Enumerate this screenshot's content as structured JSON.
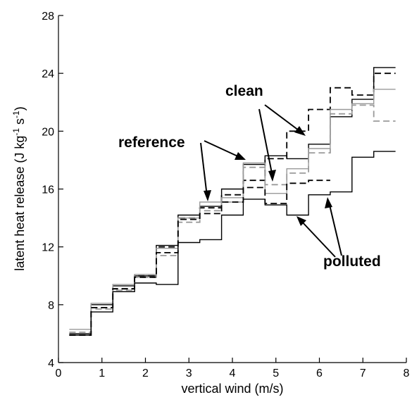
{
  "chart_data": {
    "type": "line",
    "xlabel": "vertical wind (m/s)",
    "ylabel_parts": [
      "latent heat release (J kg",
      "-1",
      " s",
      "-1",
      ")"
    ],
    "xlim": [
      0,
      8
    ],
    "ylim": [
      4,
      28
    ],
    "x_ticks": [
      0,
      1,
      2,
      3,
      4,
      5,
      6,
      7,
      8
    ],
    "y_ticks": [
      4,
      8,
      12,
      16,
      20,
      24,
      28
    ],
    "bin_edges": [
      0.25,
      0.75,
      1.25,
      1.75,
      2.25,
      2.75,
      3.25,
      3.75,
      4.25,
      4.75,
      5.25,
      5.75,
      6.25,
      6.75,
      7.25,
      7.75
    ],
    "series": [
      {
        "name": "clean",
        "color": "#000000",
        "dashed": false,
        "values": [
          6.0,
          8.0,
          9.3,
          10.0,
          12.1,
          14.2,
          14.8,
          16.0,
          17.7,
          18.3,
          18.1,
          19.1,
          21.0,
          22.2,
          24.4
        ]
      },
      {
        "name": "clean",
        "color": "#000000",
        "dashed": true,
        "values": [
          5.9,
          7.8,
          9.1,
          10.0,
          12.0,
          14.0,
          14.7,
          15.6,
          16.6,
          18.1,
          20.0,
          21.5,
          23.0,
          22.5,
          24.0
        ]
      },
      {
        "name": "reference",
        "color": "#9a9a9a",
        "dashed": false,
        "values": [
          6.3,
          8.1,
          9.4,
          10.1,
          11.9,
          14.0,
          15.1,
          15.4,
          17.8,
          15.7,
          17.4,
          18.8,
          21.5,
          21.9,
          22.9
        ]
      },
      {
        "name": "reference",
        "color": "#9a9a9a",
        "dashed": true,
        "values": [
          6.1,
          7.7,
          9.0,
          9.9,
          11.4,
          13.7,
          14.5,
          15.1,
          17.5,
          16.3,
          17.1,
          18.5,
          21.2,
          21.8,
          20.7
        ]
      },
      {
        "name": "polluted",
        "color": "#000000",
        "dashed": false,
        "values": [
          5.9,
          7.5,
          8.9,
          9.5,
          9.4,
          12.3,
          12.5,
          14.2,
          15.3,
          14.9,
          14.2,
          15.6,
          15.8,
          18.2,
          18.6
        ]
      },
      {
        "name": "polluted",
        "color": "#000000",
        "dashed": true,
        "values": [
          5.9,
          7.8,
          9.1,
          9.9,
          11.6,
          13.9,
          14.3,
          15.1,
          16.1,
          15.0,
          16.4,
          16.6,
          null,
          null,
          null
        ]
      }
    ],
    "annotations": [
      {
        "text": "clean"
      },
      {
        "text": "reference"
      },
      {
        "text": "polluted"
      }
    ]
  }
}
